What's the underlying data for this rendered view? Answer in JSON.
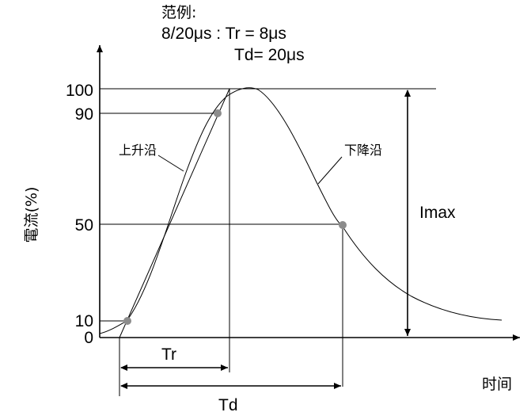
{
  "example": {
    "heading": "范例:",
    "line1": "8/20μs : Tr = 8μs",
    "line2": "Td= 20μs"
  },
  "axes": {
    "y_label": "電流(%)",
    "x_label": "时间",
    "ticks": [
      "100",
      "90",
      "50",
      "10",
      "0"
    ]
  },
  "annotations": {
    "rise_edge": "上升沿",
    "fall_edge": "下降沿",
    "imax": "Imax",
    "tr": "Tr",
    "td": "Td"
  },
  "colors": {
    "marker": "#8c8c8c",
    "ink": "#000000"
  }
}
